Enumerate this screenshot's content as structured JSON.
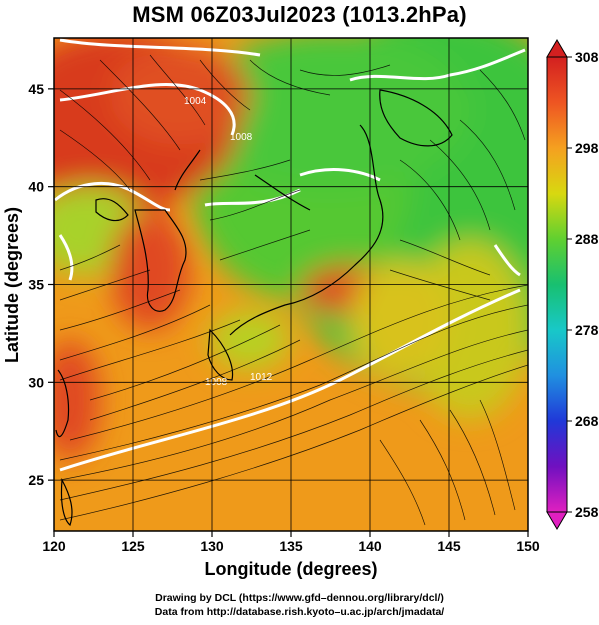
{
  "title": "MSM 06Z03Jul2023 (1013.2hPa)",
  "map": {
    "x_axis": {
      "label": "Longitude (degrees)",
      "range": [
        120,
        150
      ],
      "ticks": [
        "120",
        "125",
        "130",
        "135",
        "140",
        "145",
        "150"
      ]
    },
    "y_axis": {
      "label": "Latitude  (degrees)",
      "range": [
        22.4,
        47.6
      ],
      "ticks": [
        "25",
        "30",
        "35",
        "40",
        "45"
      ]
    },
    "isobar_labels": [
      "1004",
      "1008",
      "1012",
      "1008"
    ],
    "colors": {
      "hot": "#d83a1c",
      "warm": "#ef9a1a",
      "mild": "#a8d22a",
      "cool": "#3cc43c",
      "isobar": "#ffffff",
      "coast": "#000000"
    }
  },
  "colorbar": {
    "ticks": [
      "308",
      "298",
      "288",
      "278",
      "268",
      "258"
    ],
    "range": [
      258,
      308
    ]
  },
  "credits": {
    "line1": "Drawing by DCL (https://www.gfd–dennou.org/library/dcl/)",
    "line2": "Data from http://database.rish.kyoto–u.ac.jp/arch/jmadata/"
  }
}
